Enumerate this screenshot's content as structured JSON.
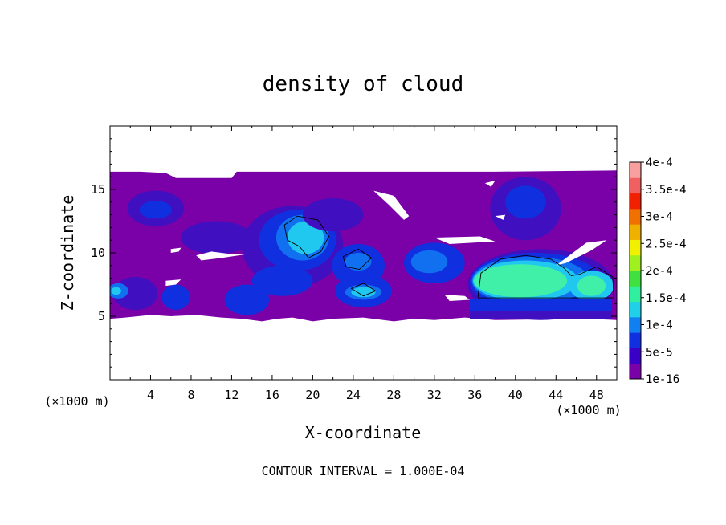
{
  "chart_data": {
    "type": "heatmap",
    "title": "density of cloud",
    "xlabel": "X-coordinate",
    "ylabel": "Z-coordinate",
    "x_unit_left": "(×1000 m)",
    "x_unit_right": "(×1000 m)",
    "xlim": [
      0,
      50
    ],
    "ylim": [
      0,
      20
    ],
    "x_ticks": [
      4,
      8,
      12,
      16,
      20,
      24,
      28,
      32,
      36,
      40,
      44,
      48
    ],
    "y_ticks": [
      5,
      10,
      15
    ],
    "footer": "CONTOUR INTERVAL = 1.000E-04",
    "colorbar": {
      "labels": [
        "1e-16",
        "5e-5",
        "1e-4",
        "1.5e-4",
        "2e-4",
        "2.5e-4",
        "3e-4",
        "3.5e-4",
        "4e-4"
      ],
      "colors": [
        "#7a00a8",
        "#3a00c8",
        "#1030e0",
        "#1080f0",
        "#20d0e8",
        "#30f0a0",
        "#40e040",
        "#a0f020",
        "#f0f000",
        "#f0b000",
        "#f07000",
        "#f02000",
        "#f06060",
        "#f8a0a0"
      ]
    },
    "levels": {
      "base": "#7a00a8",
      "level1": "#4010c0",
      "level2": "#1030e0",
      "level3": "#1070f0",
      "level4": "#20c8f0",
      "level5": "#40f0a8"
    },
    "cloud_region": {
      "z_bottom": 4.7,
      "z_top": 16.5
    }
  }
}
